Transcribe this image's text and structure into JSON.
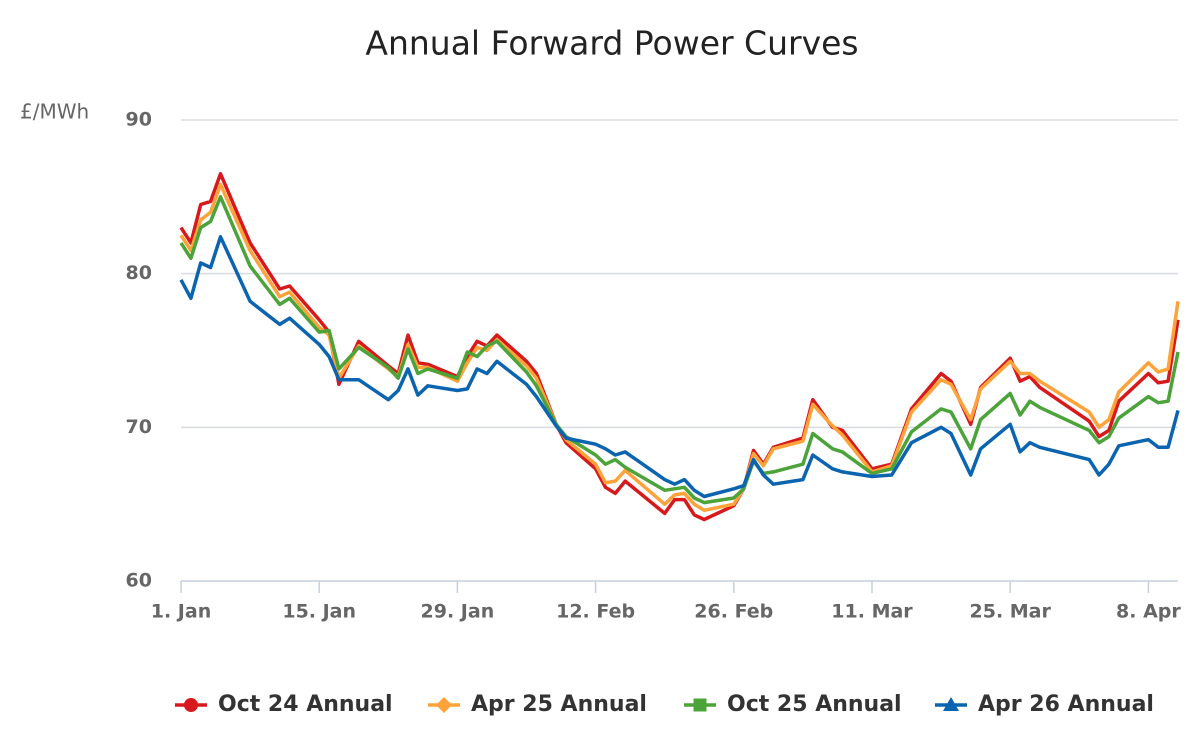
{
  "chart_data": {
    "type": "line",
    "title": "Annual Forward Power Curves",
    "y_label": "£/MWh",
    "x": [
      0,
      1,
      2,
      3,
      4,
      7,
      10,
      11,
      14,
      15,
      16,
      18,
      21,
      22,
      23,
      24,
      25,
      28,
      29,
      30,
      31,
      32,
      35,
      36,
      38,
      39,
      42,
      43,
      44,
      45,
      49,
      50,
      51,
      52,
      53,
      56,
      57,
      58,
      59,
      60,
      63,
      64,
      66,
      67,
      70,
      72,
      74,
      77,
      78,
      80,
      81,
      84,
      85,
      86,
      87,
      92,
      93,
      94,
      95,
      98,
      99,
      100,
      101
    ],
    "xlim": [
      0,
      101
    ],
    "xticks": [
      {
        "value": 0,
        "label": "1. Jan"
      },
      {
        "value": 14,
        "label": "15. Jan"
      },
      {
        "value": 28,
        "label": "29. Jan"
      },
      {
        "value": 42,
        "label": "12. Feb"
      },
      {
        "value": 56,
        "label": "26. Feb"
      },
      {
        "value": 70,
        "label": "11. Mar"
      },
      {
        "value": 84,
        "label": "25. Mar"
      },
      {
        "value": 98,
        "label": "8. Apr"
      }
    ],
    "ylim": [
      60,
      90
    ],
    "yticks": [
      60,
      70,
      80,
      90
    ],
    "grid": true,
    "legend": "bottom",
    "series": [
      {
        "name": "Oct 24 Annual",
        "color": "#d7191c",
        "marker": "circle",
        "values": [
          83.0,
          82,
          84.5,
          84.7,
          86.5,
          82,
          79,
          79.2,
          77,
          76.2,
          72.8,
          75.6,
          74,
          73.5,
          76,
          74.2,
          74.1,
          73.3,
          74.6,
          75.6,
          75.3,
          76,
          74.3,
          73.5,
          70.2,
          69,
          67.3,
          66.1,
          65.7,
          66.5,
          64.4,
          65.3,
          65.3,
          64.3,
          64,
          64.9,
          66,
          68.5,
          67.6,
          68.7,
          69.3,
          71.8,
          70,
          69.8,
          67.3,
          67.6,
          71.2,
          73.5,
          73,
          70.2,
          72.6,
          74.5,
          73,
          73.3,
          72.6,
          70.4,
          69.4,
          69.8,
          71.7,
          73.5,
          72.9,
          73,
          77
        ]
      },
      {
        "name": "Apr 25 Annual",
        "color": "#fda33a",
        "marker": "diamond",
        "values": [
          82.5,
          81.5,
          83.5,
          84,
          85.8,
          81.5,
          78.5,
          78.8,
          76.5,
          76,
          73.2,
          75.3,
          73.8,
          73.3,
          75.4,
          73.9,
          73.9,
          73,
          74.2,
          75.2,
          75,
          75.7,
          74,
          73.2,
          70.2,
          69.2,
          67.6,
          66.4,
          66.5,
          67.2,
          65,
          65.6,
          65.7,
          65,
          64.6,
          65,
          66,
          68.3,
          67.5,
          68.6,
          69.1,
          71.5,
          70.1,
          69.5,
          67.1,
          67.5,
          71,
          73.1,
          72.8,
          70.5,
          72.5,
          74.3,
          73.5,
          73.5,
          73,
          71,
          70,
          70.5,
          72.3,
          74.2,
          73.6,
          73.8,
          78.2
        ]
      },
      {
        "name": "Oct 25 Annual",
        "color": "#4ba33a",
        "marker": "square",
        "values": [
          82,
          81,
          83,
          83.4,
          85,
          80.5,
          78,
          78.4,
          76.2,
          76.3,
          73.8,
          75.2,
          73.9,
          73.2,
          75.1,
          73.5,
          73.8,
          73.2,
          74.9,
          74.6,
          75.3,
          75.6,
          73.6,
          72.7,
          70.2,
          69.4,
          68.2,
          67.6,
          67.9,
          67.4,
          65.9,
          66,
          66.1,
          65.4,
          65.1,
          65.4,
          66,
          67.8,
          67,
          67.1,
          67.6,
          69.6,
          68.6,
          68.4,
          67,
          67.3,
          69.7,
          71.2,
          71,
          68.6,
          70.5,
          72.2,
          70.8,
          71.7,
          71.3,
          69.8,
          69,
          69.4,
          70.6,
          72,
          71.6,
          71.7,
          74.9
        ]
      },
      {
        "name": "Apr 26 Annual",
        "color": "#0b64b0",
        "marker": "triangle",
        "values": [
          79.6,
          78.4,
          80.7,
          80.4,
          82.4,
          78.2,
          76.7,
          77.1,
          75.4,
          74.6,
          73.1,
          73.1,
          71.8,
          72.4,
          73.8,
          72.1,
          72.7,
          72.4,
          72.5,
          73.8,
          73.5,
          74.3,
          72.8,
          72,
          70.1,
          69.3,
          68.9,
          68.6,
          68.2,
          68.4,
          66.6,
          66.3,
          66.6,
          65.9,
          65.5,
          66,
          66.2,
          67.9,
          66.9,
          66.3,
          66.6,
          68.2,
          67.3,
          67.1,
          66.8,
          66.9,
          69,
          70,
          69.6,
          66.9,
          68.6,
          70.2,
          68.4,
          69,
          68.7,
          67.9,
          66.9,
          67.6,
          68.8,
          69.2,
          68.7,
          68.7,
          71.1
        ]
      }
    ]
  }
}
